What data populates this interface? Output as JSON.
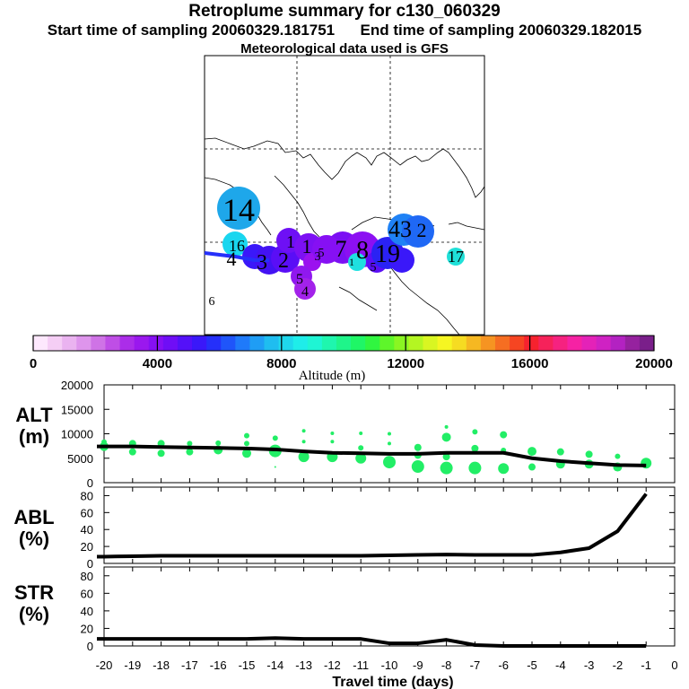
{
  "header": {
    "title": "Retroplume summary for c130_060329",
    "start_label": "Start time of sampling 20060329.181751",
    "end_label": "End time of sampling 20060329.182015",
    "met_label": "Meteorological data used is GFS"
  },
  "colorbar": {
    "label": "Altitude (m)",
    "tick_labels": [
      "0",
      "4000",
      "8000",
      "12000",
      "16000",
      "20000"
    ],
    "colors": [
      "#fde8fd",
      "#f5cef5",
      "#eab3f0",
      "#de95ec",
      "#cf73e6",
      "#bf4ee6",
      "#ab2de9",
      "#9a18ee",
      "#8610f3",
      "#6f0ef6",
      "#5411f8",
      "#3a18f9",
      "#2530fa",
      "#1f55fa",
      "#1f7afa",
      "#1f9df5",
      "#1fbdf0",
      "#1fd7ec",
      "#1fede9",
      "#1ff5d4",
      "#1ff6ae",
      "#1ff58a",
      "#1ff666",
      "#30f640",
      "#5ef62a",
      "#8af622",
      "#b4f622",
      "#d9f622",
      "#f6f622",
      "#f6dc22",
      "#f6b822",
      "#f69422",
      "#f66e22",
      "#f64522",
      "#f6222e",
      "#f6225a",
      "#f62280",
      "#f622a4",
      "#e422b8",
      "#cf22c3",
      "#b322c2",
      "#96229f",
      "#7a1f8a"
    ]
  },
  "map": {
    "labels": [
      {
        "text": "14",
        "color": "#1ea7ea"
      },
      {
        "text": "16",
        "color": "#19d6ef"
      },
      {
        "text": "4",
        "color": "#2a17f0"
      },
      {
        "text": "3",
        "color": "#4312f3"
      },
      {
        "text": "2",
        "color": "#5a0ef6"
      },
      {
        "text": "1",
        "color": "#6e10f5"
      },
      {
        "text": "5",
        "color": "#9018ef"
      },
      {
        "text": "4",
        "color": "#a322ea"
      },
      {
        "text": "1",
        "color": "#7c10f3"
      },
      {
        "text": "3",
        "color": "#8f10f3"
      },
      {
        "text": "5",
        "color": "#9b12ef"
      },
      {
        "text": "7",
        "color": "#7b10f3"
      },
      {
        "text": "8",
        "color": "#8c10f2"
      },
      {
        "text": "5",
        "color": "#5a0ef6"
      },
      {
        "text": "1",
        "color": "#2d3df6"
      },
      {
        "text": "19",
        "color": "#2a22f4"
      },
      {
        "text": "43",
        "color": "#1f82f5"
      },
      {
        "text": "2",
        "color": "#1f68f5"
      },
      {
        "text": "17",
        "color": "#1fe0d8"
      },
      {
        "text": "6",
        "color": "#3a18f9"
      }
    ]
  },
  "chart_data": [
    {
      "type": "line",
      "panel": "ALT",
      "title": "ALT",
      "ylabel": "(m)",
      "ylim": [
        0,
        20000
      ],
      "yticks": [
        "0",
        "5000",
        "10000",
        "15000",
        "20000"
      ],
      "x": [
        -20,
        -19,
        -18,
        -17,
        -16,
        -15,
        -14,
        -13,
        -12,
        -11,
        -10,
        -9,
        -8,
        -7,
        -6,
        -5,
        -4,
        -3,
        -2,
        -1
      ],
      "values": [
        7400,
        7400,
        7300,
        7200,
        7100,
        7000,
        6800,
        6400,
        6100,
        6000,
        5900,
        5900,
        6100,
        6100,
        6100,
        5000,
        4400,
        4000,
        3600,
        3500
      ],
      "scatter_points": [
        {
          "x": -20,
          "y": 7400,
          "r": 5
        },
        {
          "x": -20,
          "y": 8300,
          "r": 3
        },
        {
          "x": -19,
          "y": 8000,
          "r": 4
        },
        {
          "x": -19,
          "y": 6300,
          "r": 4
        },
        {
          "x": -18,
          "y": 8000,
          "r": 4
        },
        {
          "x": -18,
          "y": 6000,
          "r": 4
        },
        {
          "x": -17,
          "y": 8000,
          "r": 3
        },
        {
          "x": -17,
          "y": 6300,
          "r": 4
        },
        {
          "x": -16,
          "y": 8100,
          "r": 3
        },
        {
          "x": -16,
          "y": 6700,
          "r": 5
        },
        {
          "x": -15,
          "y": 9600,
          "r": 3
        },
        {
          "x": -15,
          "y": 8000,
          "r": 3
        },
        {
          "x": -15,
          "y": 6000,
          "r": 5
        },
        {
          "x": -14,
          "y": 9100,
          "r": 3
        },
        {
          "x": -14,
          "y": 6500,
          "r": 7
        },
        {
          "x": -14,
          "y": 3200,
          "r": 1
        },
        {
          "x": -13,
          "y": 10600,
          "r": 2
        },
        {
          "x": -13,
          "y": 8400,
          "r": 2
        },
        {
          "x": -13,
          "y": 5300,
          "r": 6
        },
        {
          "x": -12,
          "y": 10100,
          "r": 2
        },
        {
          "x": -12,
          "y": 8400,
          "r": 2
        },
        {
          "x": -12,
          "y": 5300,
          "r": 6
        },
        {
          "x": -11,
          "y": 10100,
          "r": 2
        },
        {
          "x": -11,
          "y": 7100,
          "r": 3
        },
        {
          "x": -11,
          "y": 5000,
          "r": 6
        },
        {
          "x": -10,
          "y": 10000,
          "r": 2
        },
        {
          "x": -10,
          "y": 8000,
          "r": 2
        },
        {
          "x": -10,
          "y": 4200,
          "r": 7
        },
        {
          "x": -9,
          "y": 7200,
          "r": 4
        },
        {
          "x": -9,
          "y": 5600,
          "r": 4
        },
        {
          "x": -9,
          "y": 3300,
          "r": 7
        },
        {
          "x": -8,
          "y": 11400,
          "r": 2
        },
        {
          "x": -8,
          "y": 9300,
          "r": 5
        },
        {
          "x": -8,
          "y": 5300,
          "r": 4
        },
        {
          "x": -8,
          "y": 3000,
          "r": 7
        },
        {
          "x": -7,
          "y": 10400,
          "r": 3
        },
        {
          "x": -7,
          "y": 7000,
          "r": 4
        },
        {
          "x": -7,
          "y": 3000,
          "r": 7
        },
        {
          "x": -6,
          "y": 9800,
          "r": 4
        },
        {
          "x": -6,
          "y": 6600,
          "r": 3
        },
        {
          "x": -6,
          "y": 2900,
          "r": 6
        },
        {
          "x": -5,
          "y": 6400,
          "r": 5
        },
        {
          "x": -5,
          "y": 3200,
          "r": 4
        },
        {
          "x": -4,
          "y": 6300,
          "r": 4
        },
        {
          "x": -4,
          "y": 3800,
          "r": 5
        },
        {
          "x": -3,
          "y": 5800,
          "r": 4
        },
        {
          "x": -3,
          "y": 3800,
          "r": 5
        },
        {
          "x": -2,
          "y": 5400,
          "r": 3
        },
        {
          "x": -2,
          "y": 3200,
          "r": 5
        },
        {
          "x": -1,
          "y": 4000,
          "r": 6
        }
      ]
    },
    {
      "type": "line",
      "panel": "ABL",
      "title": "ABL",
      "ylabel": "(%)",
      "ylim": [
        0,
        90
      ],
      "yticks": [
        "0",
        "20",
        "40",
        "60",
        "80"
      ],
      "x": [
        -20,
        -19,
        -18,
        -17,
        -16,
        -15,
        -14,
        -13,
        -12,
        -11,
        -10,
        -9,
        -8,
        -7,
        -6,
        -5,
        -4,
        -3,
        -2,
        -1
      ],
      "values": [
        8,
        8.5,
        9,
        9,
        9,
        9,
        9,
        9,
        9,
        9,
        9.5,
        10,
        10.5,
        10,
        10,
        10,
        13,
        18,
        38,
        82
      ]
    },
    {
      "type": "line",
      "panel": "STR",
      "title": "STR",
      "ylabel": "(%)",
      "ylim": [
        0,
        90
      ],
      "yticks": [
        "0",
        "20",
        "40",
        "60",
        "80"
      ],
      "x": [
        -20,
        -19,
        -18,
        -17,
        -16,
        -15,
        -14,
        -13,
        -12,
        -11,
        -10,
        -9,
        -8,
        -7,
        -6,
        -5,
        -4,
        -3,
        -2,
        -1
      ],
      "values": [
        8,
        8,
        8,
        8,
        8,
        8,
        9,
        8,
        8,
        8,
        3,
        3,
        7,
        1,
        0,
        0,
        0,
        0,
        0,
        0
      ]
    },
    {
      "type": "axis",
      "xlabel": "Travel time (days)",
      "xlim": [
        -20,
        0
      ],
      "xticks": [
        "-20",
        "-19",
        "-18",
        "-17",
        "-16",
        "-15",
        "-14",
        "-13",
        "-12",
        "-11",
        "-10",
        "-9",
        "-8",
        "-7",
        "-6",
        "-5",
        "-4",
        "-3",
        "-2",
        "-1",
        "0"
      ]
    }
  ]
}
